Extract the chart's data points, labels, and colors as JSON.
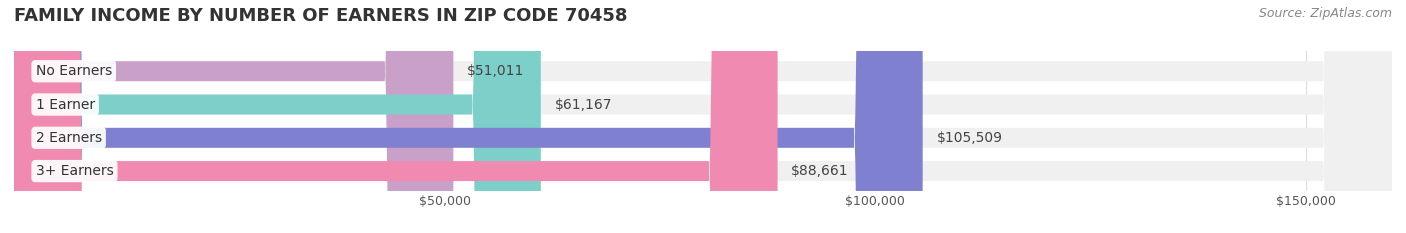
{
  "title": "FAMILY INCOME BY NUMBER OF EARNERS IN ZIP CODE 70458",
  "source": "Source: ZipAtlas.com",
  "categories": [
    "No Earners",
    "1 Earner",
    "2 Earners",
    "3+ Earners"
  ],
  "values": [
    51011,
    61167,
    105509,
    88661
  ],
  "bar_colors": [
    "#c9a0c8",
    "#7dcfca",
    "#8080d0",
    "#f08ab0"
  ],
  "bar_bg_color": "#f0f0f0",
  "value_labels": [
    "$51,011",
    "$61,167",
    "$105,509",
    "$88,661"
  ],
  "xlim": [
    0,
    160000
  ],
  "xticks": [
    0,
    50000,
    100000,
    150000
  ],
  "xtick_labels": [
    "",
    "$50,000",
    "$100,000",
    "$150,000"
  ],
  "title_fontsize": 13,
  "label_fontsize": 10,
  "value_fontsize": 10,
  "source_fontsize": 9,
  "background_color": "#ffffff",
  "bar_height": 0.6,
  "grid_color": "#dddddd",
  "label_bg_color": "#ffffff",
  "vline_x": 50000
}
